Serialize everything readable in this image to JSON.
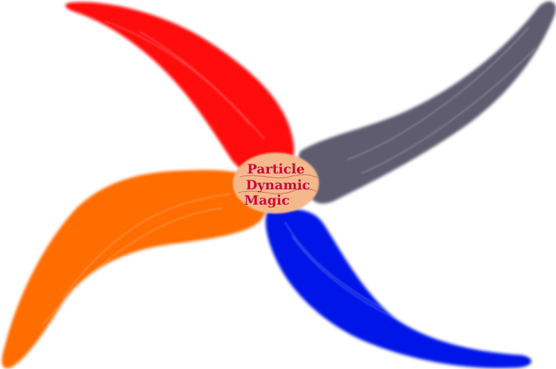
{
  "colors": {
    "red_blade": "#ff0a08",
    "gray_blade": "#5e5c6f",
    "orange_blade": "#ff6c00",
    "blue_blade": "#0513e8",
    "center_fill": "#f5b88c",
    "text": "#d1073b"
  },
  "center_text": {
    "line1": "Particle",
    "line2": "Dynamic",
    "line3": "Magic"
  }
}
